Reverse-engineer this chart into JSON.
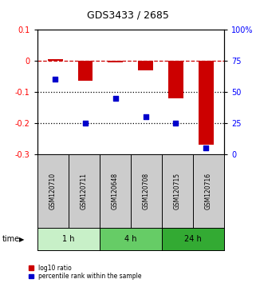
{
  "title": "GDS3433 / 2685",
  "samples": [
    "GSM120710",
    "GSM120711",
    "GSM120648",
    "GSM120708",
    "GSM120715",
    "GSM120716"
  ],
  "log10_ratio": [
    0.005,
    -0.063,
    -0.005,
    -0.03,
    -0.12,
    -0.27
  ],
  "percentile_rank": [
    60,
    25,
    45,
    30,
    25,
    5
  ],
  "ylim_left": [
    -0.3,
    0.1
  ],
  "ylim_right": [
    0,
    100
  ],
  "yticks_left": [
    -0.3,
    -0.2,
    -0.1,
    0.0,
    0.1
  ],
  "yticks_right": [
    0,
    25,
    50,
    75,
    100
  ],
  "ytick_labels_right": [
    "0",
    "25",
    "50",
    "75",
    "100%"
  ],
  "groups": [
    {
      "label": "1 h",
      "samples": [
        0,
        1
      ],
      "color": "#c8f0c8"
    },
    {
      "label": "4 h",
      "samples": [
        2,
        3
      ],
      "color": "#66cc66"
    },
    {
      "label": "24 h",
      "samples": [
        4,
        5
      ],
      "color": "#33aa33"
    }
  ],
  "bar_color": "#cc0000",
  "point_color": "#0000cc",
  "dashed_line_color": "#cc0000",
  "dotted_line_color": "#000000",
  "sample_box_color": "#cccccc",
  "sample_text_color": "#000000",
  "legend_bar_label": "log10 ratio",
  "legend_point_label": "percentile rank within the sample",
  "time_label": "time",
  "bar_width": 0.5,
  "point_size": 25
}
